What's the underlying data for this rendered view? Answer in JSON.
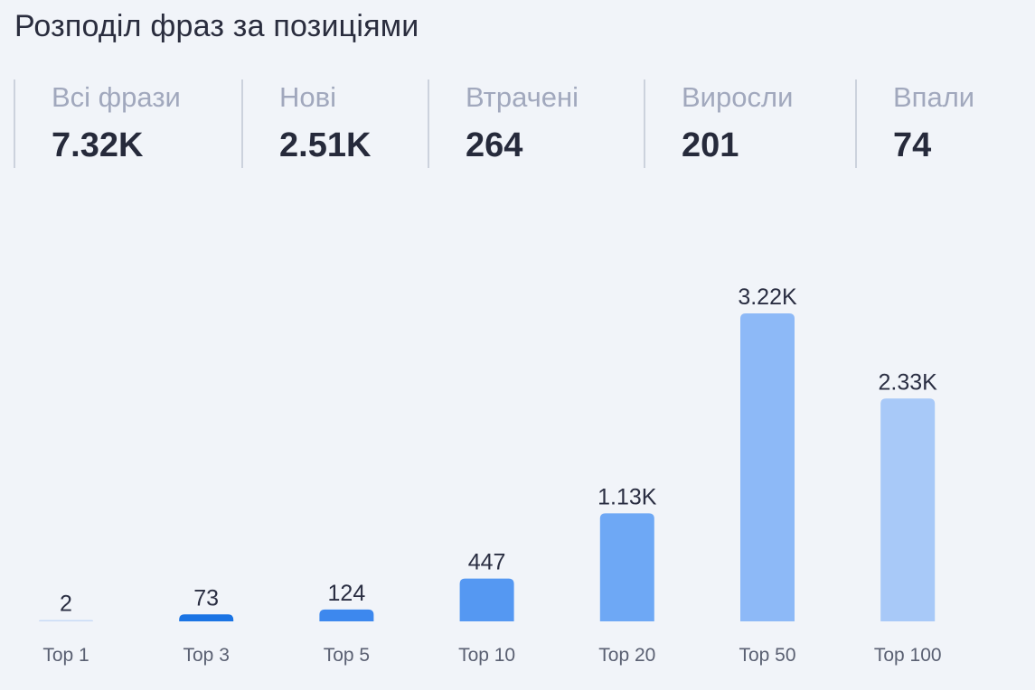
{
  "title": "Розподіл фраз за позиціями",
  "stats": [
    {
      "label": "Всі фрази",
      "value": "7.32K"
    },
    {
      "label": "Нові",
      "value": "2.51K"
    },
    {
      "label": "Втрачені",
      "value": "264"
    },
    {
      "label": "Виросли",
      "value": "201"
    },
    {
      "label": "Впали",
      "value": "74"
    }
  ],
  "chart_data": {
    "type": "bar",
    "title": "",
    "xlabel": "",
    "ylabel": "",
    "categories": [
      "Top 1",
      "Top 3",
      "Top 5",
      "Top 10",
      "Top 20",
      "Top 50",
      "Top 100"
    ],
    "values": [
      2,
      73,
      124,
      447,
      1130,
      3220,
      2330
    ],
    "labels": [
      "2",
      "73",
      "124",
      "447",
      "1.13K",
      "3.22K",
      "2.33K"
    ],
    "colors": [
      "#c9dbf6",
      "#1b74e4",
      "#3d88ee",
      "#5598f2",
      "#6ea8f5",
      "#8db9f7",
      "#a8c9f8"
    ],
    "ylim": [
      0,
      3220
    ],
    "grid": false,
    "legend": "none"
  }
}
